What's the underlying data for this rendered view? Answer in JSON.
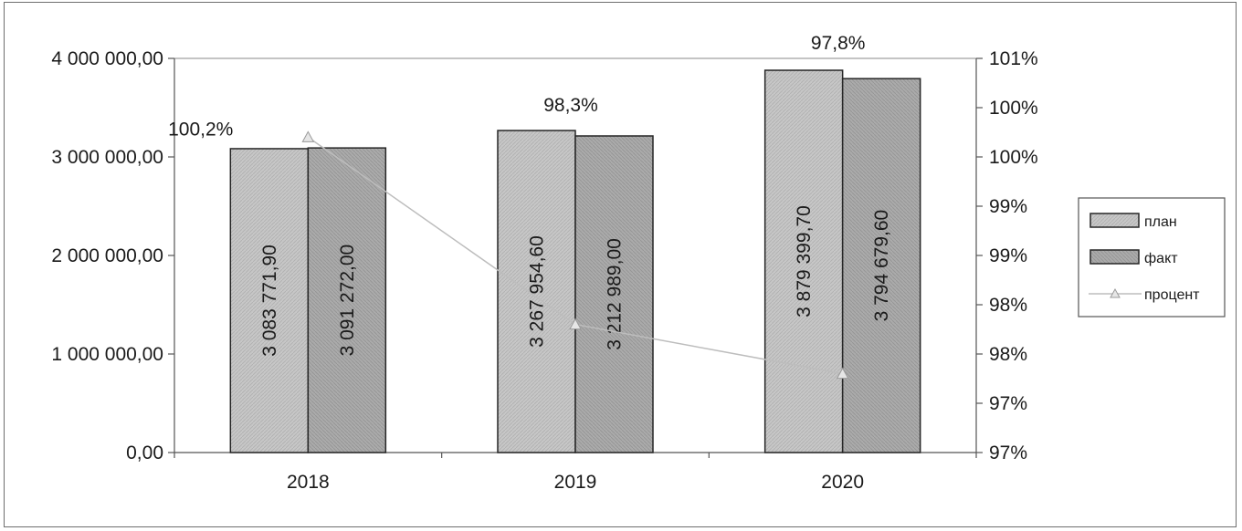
{
  "chart_data": {
    "type": "bar",
    "categories": [
      "2018",
      "2019",
      "2020"
    ],
    "series": [
      {
        "name": "план",
        "values": [
          3083771.9,
          3267954.6,
          3879399.7
        ],
        "labels": [
          "3 083 771,90",
          "3 267 954,60",
          "3 879 399,70"
        ],
        "color": "#c4c4c4"
      },
      {
        "name": "факт",
        "values": [
          3091272.0,
          3212989.0,
          3794679.6
        ],
        "labels": [
          "3 091 272,00",
          "3 212 989,00",
          "3 794 679,60"
        ],
        "color": "#a9a9a9"
      },
      {
        "name": "процент",
        "type": "line",
        "axis": "right",
        "values": [
          100.2,
          98.3,
          97.8
        ],
        "labels": [
          "100,2%",
          "98,3%",
          "97,8%"
        ],
        "color": "#d0d0d0"
      }
    ],
    "y_left": {
      "ylim": [
        0,
        4000000
      ],
      "ticks": [
        0,
        1000000,
        2000000,
        3000000,
        4000000
      ],
      "tick_labels": [
        "0,00",
        "1 000 000,00",
        "2 000 000,00",
        "3 000 000,00",
        "4 000 000,00"
      ]
    },
    "y_right": {
      "ylim": [
        97,
        101
      ],
      "ticks": [
        97,
        97.5,
        98,
        98.5,
        99,
        99.5,
        100,
        100.5,
        101
      ],
      "tick_labels": [
        "97%",
        "97%",
        "98%",
        "98%",
        "99%",
        "99%",
        "100%",
        "100%",
        "101%"
      ]
    },
    "title": "",
    "xlabel": "",
    "ylabel": "",
    "grid": false,
    "legend": {
      "position": "right",
      "entries": [
        "план",
        "факт",
        "процент"
      ]
    }
  }
}
